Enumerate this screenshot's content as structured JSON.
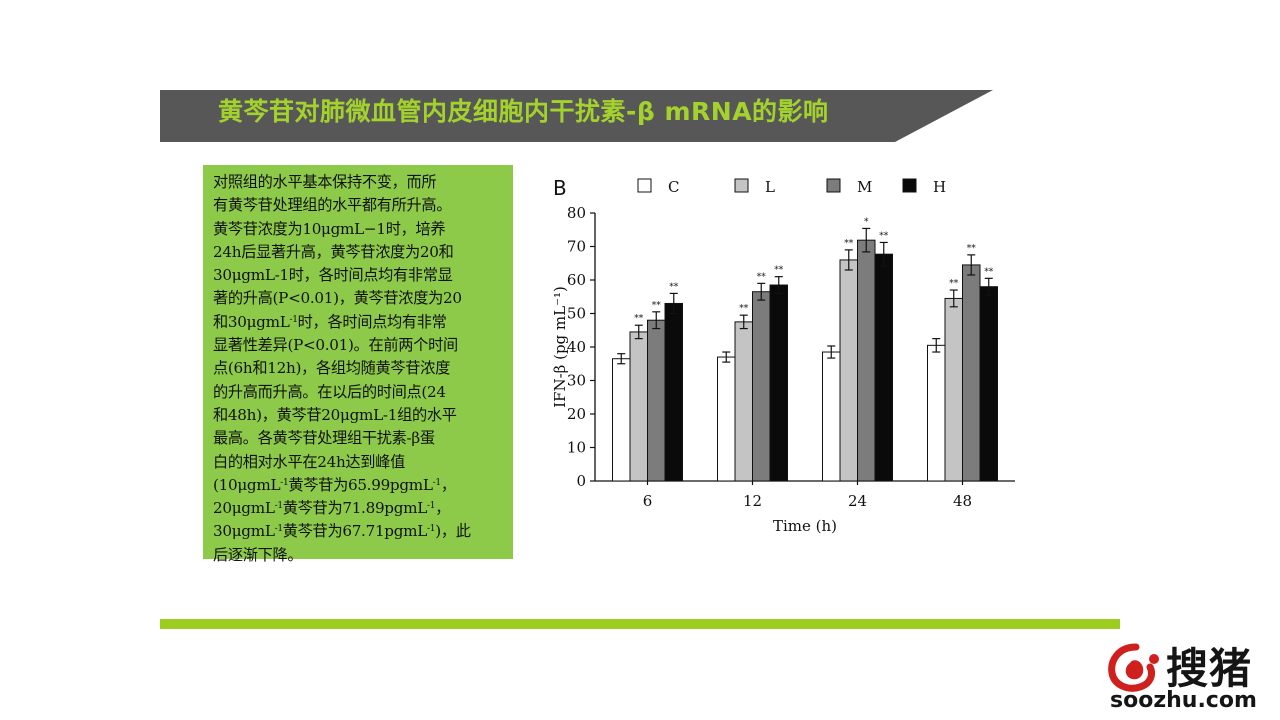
{
  "slide": {
    "title": "黄芩苷对肺微血管内皮细胞内干扰素-β mRNA的影响",
    "body_lines": [
      [
        "对照组的水平基本保持不变，而所"
      ],
      [
        "有黄芩苷处理组的水平都有所升高。"
      ],
      [
        "黄芩苷浓度为10μgmL−1时，培养"
      ],
      [
        "24h后显著升高，黄芩苷浓度为20和"
      ],
      [
        "30μgmL-1时，各时间点均有非常显"
      ],
      [
        "著的升高(P<0.01)，黄芩苷浓度为20"
      ],
      [
        "和30μgmL",
        "-1",
        "时，各时间点均有非常"
      ],
      [
        "显著性差异(P<0.01)。在前两个时间"
      ],
      [
        "点(6h和12h)，各组均随黄芩苷浓度"
      ],
      [
        "的升高而升高。在以后的时间点(24"
      ],
      [
        "和48h)，黄芩苷20μgmL-1组的水平"
      ],
      [
        "最高。各黄芩苷处理组干扰素-β蛋"
      ],
      [
        "白的相对水平在24h达到峰值"
      ],
      [
        "(10μgmL",
        "-1",
        "黄芩苷为65.99pgmL",
        "-1",
        "，"
      ],
      [
        "20μgmL",
        "-1",
        "黄芩苷为71.89pgmL",
        "-1",
        "，"
      ],
      [
        "30μgmL",
        "-1",
        "黄芩苷为67.71pgmL",
        "-1",
        ")，此"
      ],
      [
        "后逐渐下降。"
      ]
    ]
  },
  "logo": {
    "chinese": "搜猪",
    "url": "soozhu.com"
  },
  "colors": {
    "title_bar": "#575757",
    "title_text": "#a4d22c",
    "text_box": "#8dca4a",
    "rule": "#9bcc1f"
  },
  "chart_data": {
    "type": "bar",
    "panel_label": "B",
    "categories": [
      "6",
      "12",
      "24",
      "48"
    ],
    "series": [
      {
        "name": "C",
        "color": "#ffffff",
        "values": [
          36.5,
          37,
          38.5,
          40.5
        ],
        "errors": [
          1.5,
          1.5,
          1.8,
          2
        ],
        "marks": [
          "",
          "",
          "",
          ""
        ]
      },
      {
        "name": "L",
        "color": "#c4c4c4",
        "values": [
          44.5,
          47.5,
          65.99,
          54.5
        ],
        "errors": [
          2,
          2,
          3,
          2.5
        ],
        "marks": [
          "**",
          "**",
          "**",
          "**"
        ]
      },
      {
        "name": "M",
        "color": "#7c7c7c",
        "values": [
          48,
          56.5,
          71.89,
          64.5
        ],
        "errors": [
          2.5,
          2.5,
          3.5,
          3
        ],
        "marks": [
          "**",
          "**",
          "*",
          "**"
        ]
      },
      {
        "name": "H",
        "color": "#0a0a0a",
        "values": [
          53,
          58.5,
          67.71,
          58
        ],
        "errors": [
          3,
          2.5,
          3.5,
          2.5
        ],
        "marks": [
          "**",
          "**",
          "**",
          "**"
        ]
      }
    ],
    "xlabel": "Time (h)",
    "ylabel": "IFN-β (pg mL⁻¹)",
    "ylim": [
      0,
      80
    ],
    "yticks": [
      0,
      10,
      20,
      30,
      40,
      50,
      60,
      70,
      80
    ],
    "grid": false,
    "legend_position": "top"
  }
}
